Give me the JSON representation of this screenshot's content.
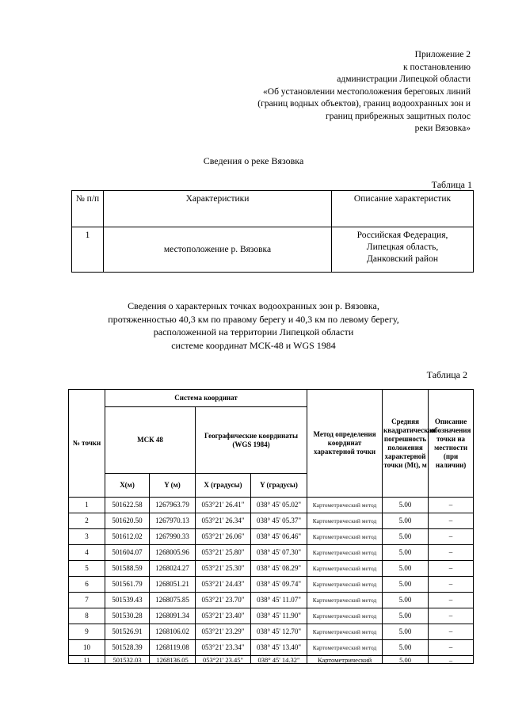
{
  "appendix": [
    "Приложение 2",
    "к постановлению",
    "администрации Липецкой области",
    "«Об установлении местоположения береговых линий",
    "(границ водных объектов), границ водоохранных зон и",
    "границ прибрежных защитных полос",
    "реки Вязовка»"
  ],
  "section1_title": "Сведения о реке Вязовка",
  "table1": {
    "label": "Таблица 1",
    "headers": [
      "№ п/п",
      "Характеристики",
      "Описание характеристик"
    ],
    "rows": [
      {
        "num": "1",
        "char": "местоположение р. Вязовка",
        "desc": [
          "Российская Федерация,",
          "Липецкая область,",
          "Данковский район"
        ]
      }
    ]
  },
  "section2_title": [
    "Сведения о характерных точках водоохранных зон р. Вязовка,",
    "протяженностью 40,3 км по правому берегу и 40,3 км по левому берегу,",
    "расположенной на территории Липецкой области",
    "системе координат МСК-48 и WGS 1984"
  ],
  "table2": {
    "label": "Таблица 2",
    "headers": {
      "num": "№ точки",
      "system": "Система координат",
      "msk": "МСК 48",
      "geo": "Географические координаты (WGS 1984)",
      "x_m": "X(м)",
      "y_m": "Y (м)",
      "x_deg": "X (градусы)",
      "y_deg": "Y (градусы)",
      "method": "Метод определения координат характерной точки",
      "error": "Средняя квадратическая погрешность положения характерной точки (Mt), м",
      "desc": "Описание обозначения точки на местности (при наличии)"
    },
    "rows": [
      [
        "1",
        "501622.58",
        "1267963.79",
        "053°21' 26.41\"",
        "038° 45' 05.02\"",
        "Картометрический метод",
        "5.00",
        "–"
      ],
      [
        "2",
        "501620.50",
        "1267970.13",
        "053°21' 26.34\"",
        "038° 45' 05.37\"",
        "Картометрический метод",
        "5.00",
        "–"
      ],
      [
        "3",
        "501612.02",
        "1267990.33",
        "053°21' 26.06\"",
        "038° 45' 06.46\"",
        "Картометрический метод",
        "5.00",
        "–"
      ],
      [
        "4",
        "501604.07",
        "1268005.96",
        "053°21' 25.80\"",
        "038° 45' 07.30\"",
        "Картометрический метод",
        "5.00",
        "–"
      ],
      [
        "5",
        "501588.59",
        "1268024.27",
        "053°21' 25.30\"",
        "038° 45' 08.29\"",
        "Картометрический метод",
        "5.00",
        "–"
      ],
      [
        "6",
        "501561.79",
        "1268051.21",
        "053°21' 24.43\"",
        "038° 45' 09.74\"",
        "Картометрический метод",
        "5.00",
        "–"
      ],
      [
        "7",
        "501539.43",
        "1268075.85",
        "053°21' 23.70\"",
        "038° 45' 11.07\"",
        "Картометрический метод",
        "5.00",
        "–"
      ],
      [
        "8",
        "501530.28",
        "1268091.34",
        "053°21' 23.40\"",
        "038° 45' 11.90\"",
        "Картометрический метод",
        "5.00",
        "–"
      ],
      [
        "9",
        "501526.91",
        "1268106.02",
        "053°21' 23.29\"",
        "038° 45' 12.70\"",
        "Картометрический метод",
        "5.00",
        "–"
      ],
      [
        "10",
        "501528.39",
        "1268119.08",
        "053°21' 23.34\"",
        "038° 45' 13.40\"",
        "Картометрический метод",
        "5.00",
        "–"
      ],
      [
        "11",
        "501532.03",
        "1268136.05",
        "053°21' 23.45\"",
        "038° 45' 14.32\"",
        "Картометрический",
        "5.00",
        "–"
      ]
    ]
  }
}
